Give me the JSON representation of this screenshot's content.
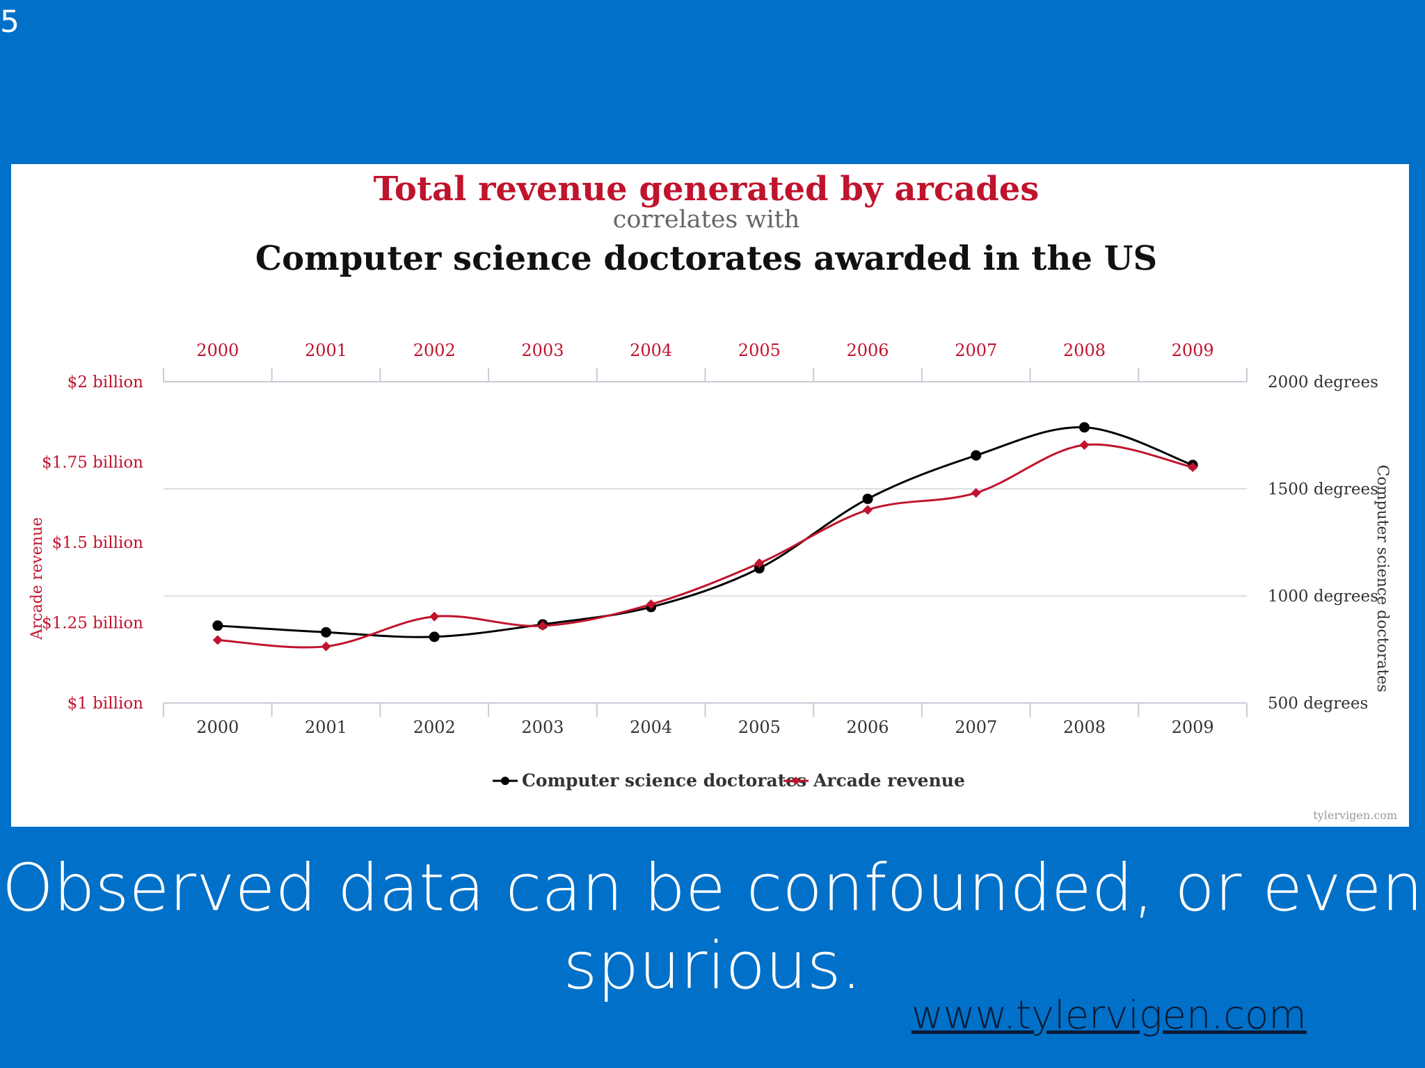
{
  "slide": {
    "number": "5",
    "caption": "Observed data can be confounded, or even spurious.",
    "link": "www.tylervigen.com"
  },
  "colors": {
    "background": "#0070c8",
    "arcade": "#c0132d",
    "doctorates": "#000000",
    "gridline": "#dcdfe6"
  },
  "chart_data": {
    "type": "line",
    "title": "Total revenue generated by arcades",
    "subtitle": "correlates with",
    "title2": "Computer science doctorates awarded in the US",
    "watermark": "tylervigen.com",
    "ylabel_left": "Arcade revenue",
    "ylabel_right": "Computer science doctorates",
    "x": [
      "2000",
      "2001",
      "2002",
      "2003",
      "2004",
      "2005",
      "2006",
      "2007",
      "2008",
      "2009"
    ],
    "y_left": {
      "range": [
        1.0,
        2.0
      ],
      "ticks": [
        2.0,
        1.75,
        1.5,
        1.25,
        1.0
      ],
      "tick_labels": [
        "$2 billion",
        "$1.75 billion",
        "$1.5 billion",
        "$1.25 billion",
        "$1 billion"
      ]
    },
    "y_right": {
      "range": [
        500,
        2000
      ],
      "ticks": [
        2000,
        1500,
        1000,
        500
      ],
      "tick_labels": [
        "2000 degrees",
        "1500 degrees",
        "1000 degrees",
        "500 degrees"
      ]
    },
    "grid": true,
    "legend_position": "bottom-center",
    "series": [
      {
        "name": "Computer science doctorates",
        "axis": "right",
        "values": [
          861,
          830,
          809,
          867,
          948,
          1129,
          1453,
          1656,
          1787,
          1611
        ]
      },
      {
        "name": "Arcade revenue",
        "axis": "left",
        "values": [
          1.196,
          1.176,
          1.269,
          1.24,
          1.307,
          1.435,
          1.601,
          1.654,
          1.803,
          1.734
        ]
      }
    ]
  }
}
